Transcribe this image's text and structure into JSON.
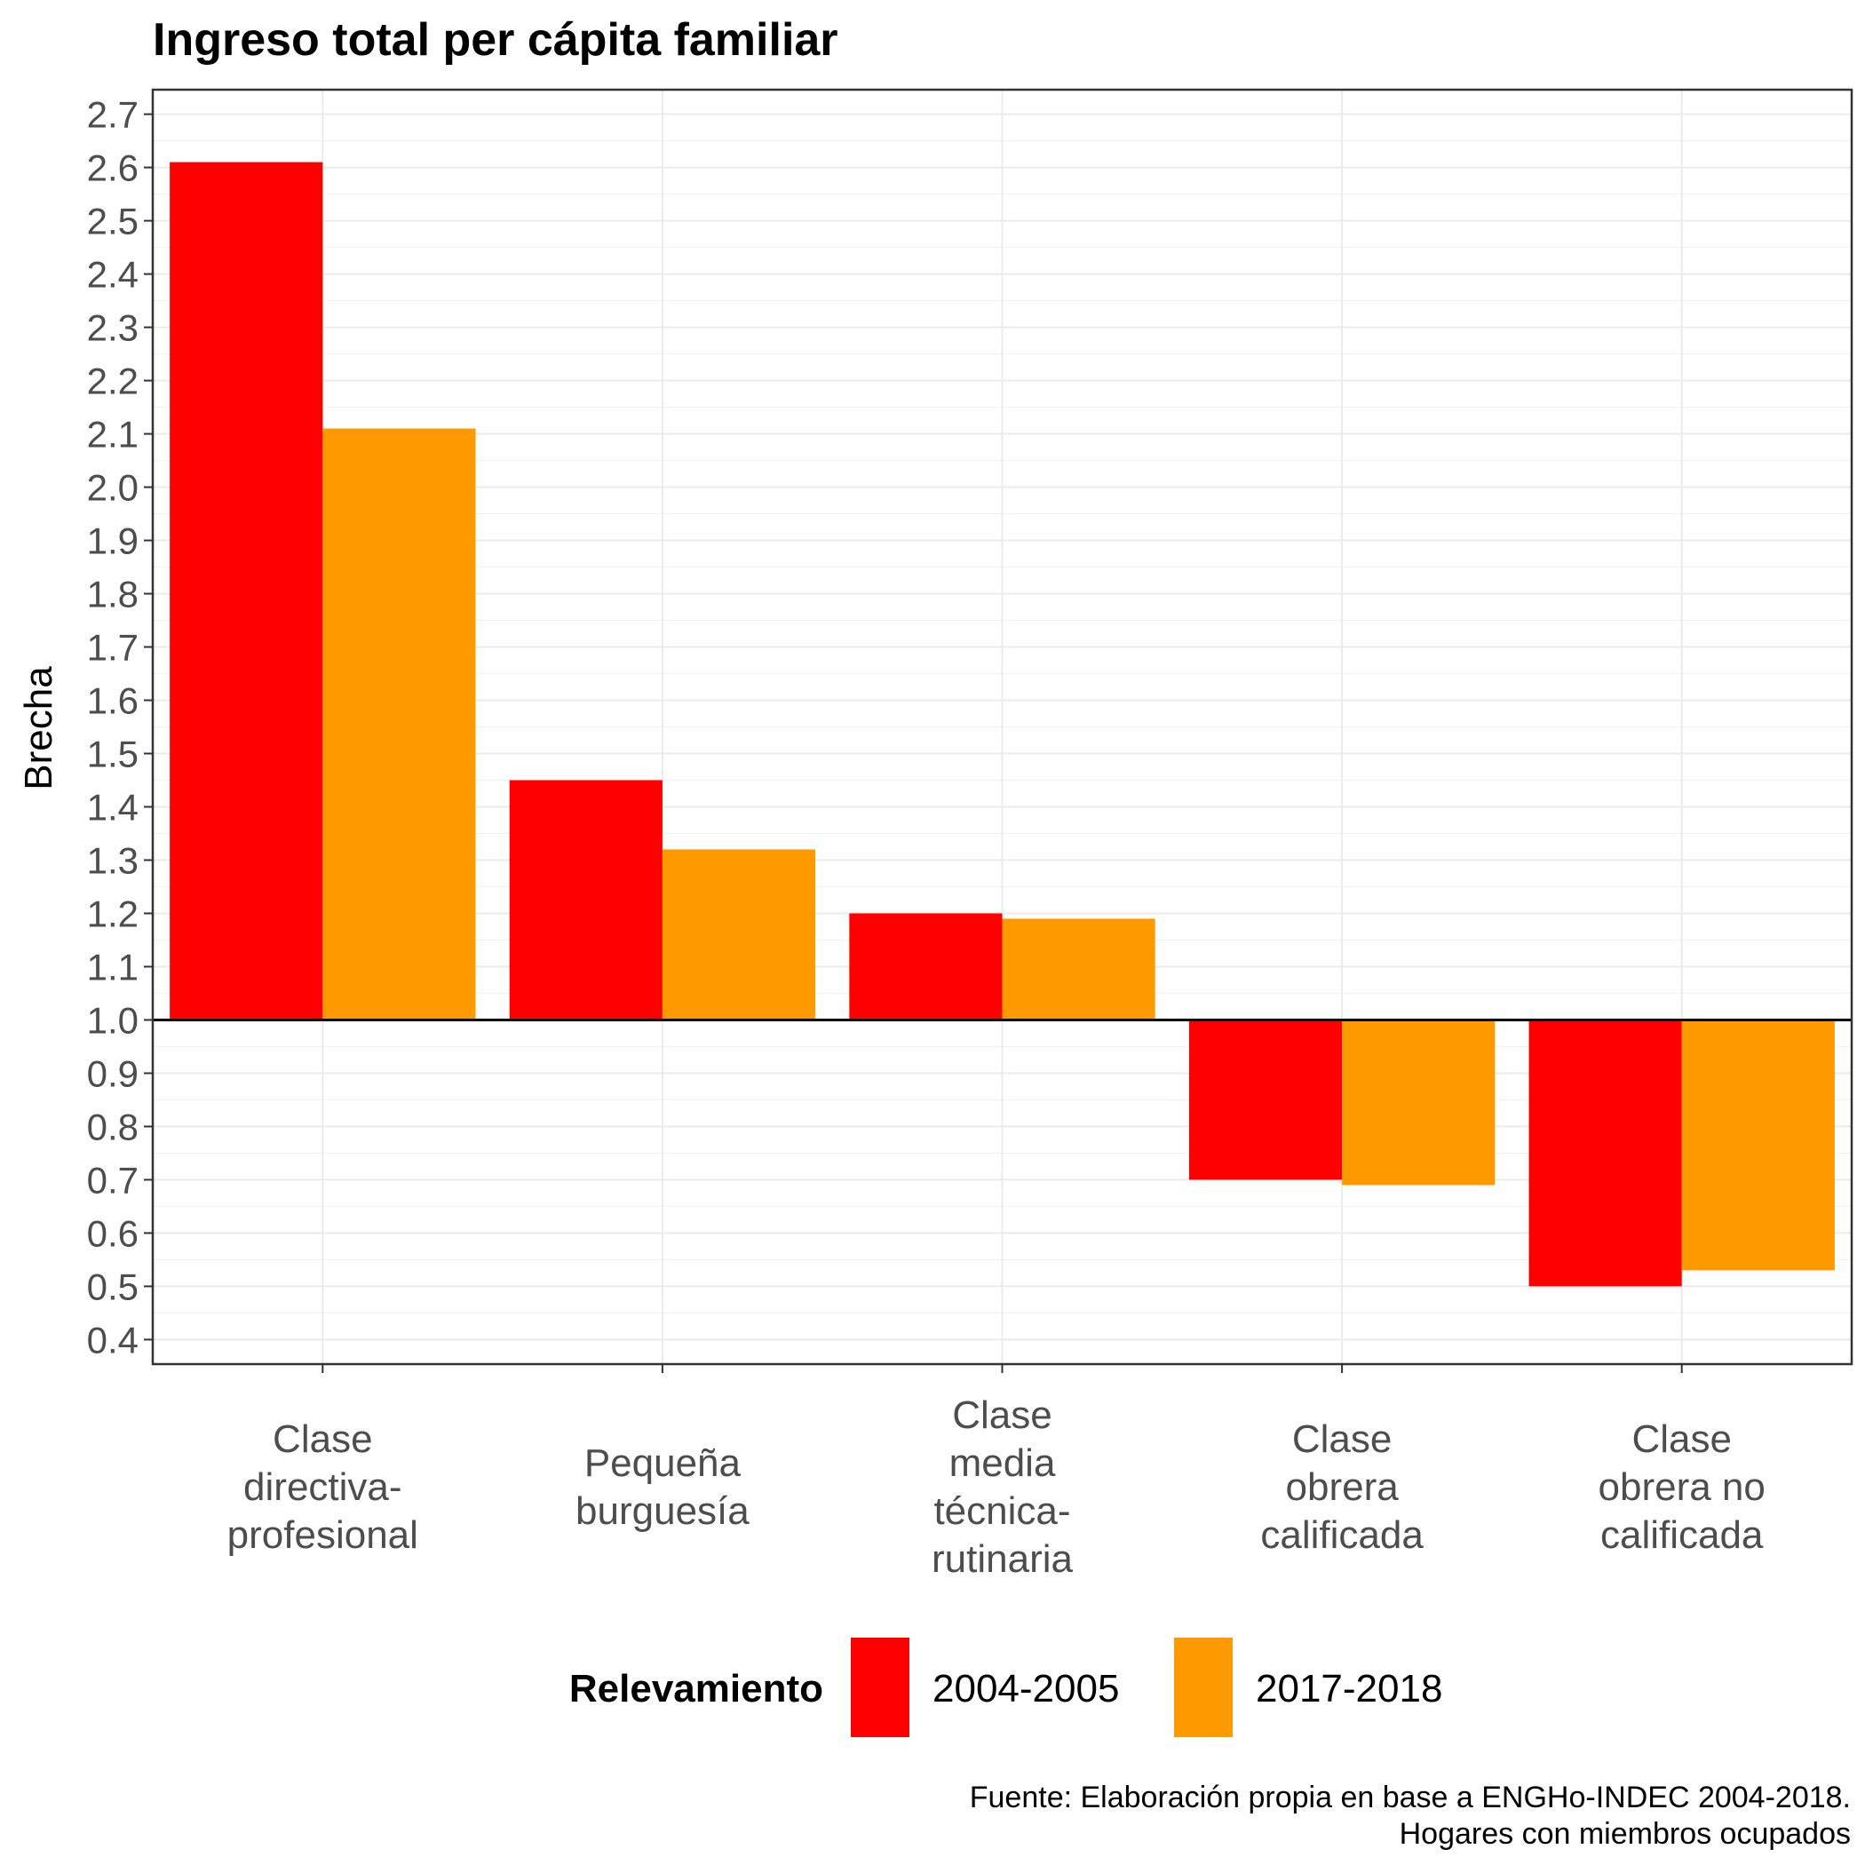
{
  "chart_data": {
    "type": "bar",
    "title": "Ingreso total per cápita familiar",
    "ylabel": "Brecha",
    "xlabel": "",
    "ylim": [
      0.4,
      2.7
    ],
    "yticks": [
      "0.4",
      "0.5",
      "0.6",
      "0.7",
      "0.8",
      "0.9",
      "1.0",
      "1.1",
      "1.2",
      "1.3",
      "1.4",
      "1.5",
      "1.6",
      "1.7",
      "1.8",
      "1.9",
      "2.0",
      "2.1",
      "2.2",
      "2.3",
      "2.4",
      "2.5",
      "2.6",
      "2.7"
    ],
    "baseline": 1.0,
    "grid": true,
    "categories": [
      [
        "Clase",
        "directiva-",
        "profesional"
      ],
      [
        "Pequeña",
        "burguesía"
      ],
      [
        "Clase",
        "media",
        "técnica-",
        "rutinaria"
      ],
      [
        "Clase",
        "obrera",
        "calificada"
      ],
      [
        "Clase",
        "obrera no",
        "calificada"
      ]
    ],
    "legend": {
      "title": "Relevamiento",
      "position": "bottom"
    },
    "series": [
      {
        "name": "2004-2005",
        "color": "#ff0000",
        "values": [
          2.61,
          1.45,
          1.2,
          0.7,
          0.5
        ]
      },
      {
        "name": "2017-2018",
        "color": "#ff9900",
        "values": [
          2.11,
          1.32,
          1.19,
          0.69,
          0.53
        ]
      }
    ],
    "caption": [
      "Fuente: Elaboración propia en base a ENGHo-INDEC 2004-2018.",
      "Hogares con miembros ocupados"
    ]
  }
}
